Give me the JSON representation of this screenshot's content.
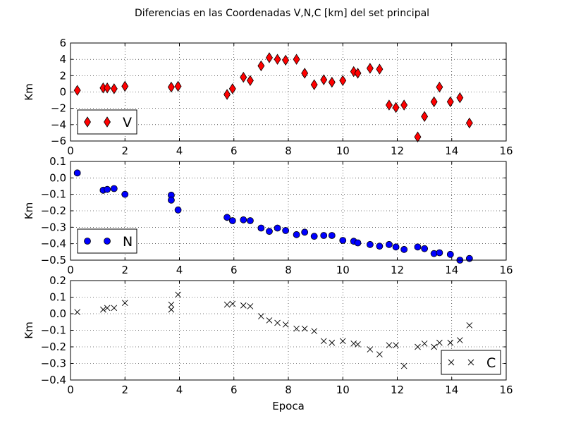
{
  "figure": {
    "title": "Diferencias en las Coordenadas V,N,C [km] del set principal"
  },
  "chart_data": [
    {
      "type": "scatter",
      "ylabel": "Km",
      "xlabel": "",
      "xlim": [
        0,
        16
      ],
      "ylim": [
        -6,
        6
      ],
      "xticks": [
        "0",
        "2",
        "4",
        "6",
        "8",
        "10",
        "12",
        "14",
        "16"
      ],
      "yticks": [
        "−6",
        "−4",
        "−2",
        "0",
        "2",
        "4",
        "6"
      ],
      "grid": true,
      "legend_placement": "lower-left",
      "marker": "diamond",
      "color": "#ff0000",
      "series": [
        {
          "name": "V",
          "x": [
            0.25,
            1.2,
            1.35,
            1.6,
            2.0,
            3.7,
            3.95,
            5.75,
            5.95,
            6.35,
            6.6,
            7.0,
            7.3,
            7.6,
            7.9,
            8.3,
            8.6,
            8.95,
            9.3,
            9.6,
            10.0,
            10.4,
            10.55,
            11.0,
            11.35,
            11.7,
            11.95,
            12.25,
            12.75,
            13.0,
            13.35,
            13.55,
            13.95,
            14.3,
            14.65
          ],
          "y": [
            0.2,
            0.5,
            0.5,
            0.4,
            0.7,
            0.6,
            0.7,
            -0.3,
            0.4,
            1.8,
            1.4,
            3.2,
            4.2,
            4.0,
            3.9,
            4.0,
            2.3,
            0.9,
            1.5,
            1.2,
            1.4,
            2.5,
            2.3,
            2.9,
            2.8,
            -1.6,
            -1.9,
            -1.6,
            -5.5,
            -3.0,
            -1.2,
            0.6,
            -1.2,
            -0.7,
            -3.8
          ]
        }
      ]
    },
    {
      "type": "scatter",
      "ylabel": "Km",
      "xlabel": "",
      "xlim": [
        0,
        16
      ],
      "ylim": [
        -0.5,
        0.1
      ],
      "xticks": [
        "0",
        "2",
        "4",
        "6",
        "8",
        "10",
        "12",
        "14",
        "16"
      ],
      "yticks": [
        "−0.5",
        "−0.4",
        "−0.3",
        "−0.2",
        "−0.1",
        "0.0",
        "0.1"
      ],
      "grid": true,
      "legend_placement": "lower-left",
      "marker": "circle",
      "color": "#0000ff",
      "series": [
        {
          "name": "N",
          "x": [
            0.25,
            1.2,
            1.35,
            1.6,
            2.0,
            3.7,
            3.7,
            3.95,
            5.75,
            5.95,
            6.35,
            6.6,
            7.0,
            7.3,
            7.6,
            7.9,
            8.3,
            8.6,
            8.95,
            9.3,
            9.6,
            10.0,
            10.4,
            10.55,
            11.0,
            11.35,
            11.7,
            11.95,
            12.25,
            12.75,
            13.0,
            13.35,
            13.55,
            13.95,
            14.3,
            14.65
          ],
          "y": [
            0.03,
            -0.075,
            -0.07,
            -0.065,
            -0.1,
            -0.105,
            -0.135,
            -0.195,
            -0.24,
            -0.26,
            -0.255,
            -0.26,
            -0.305,
            -0.325,
            -0.305,
            -0.32,
            -0.345,
            -0.33,
            -0.355,
            -0.35,
            -0.35,
            -0.38,
            -0.385,
            -0.395,
            -0.405,
            -0.415,
            -0.405,
            -0.42,
            -0.435,
            -0.42,
            -0.43,
            -0.46,
            -0.455,
            -0.465,
            -0.5,
            -0.49
          ]
        }
      ]
    },
    {
      "type": "scatter",
      "ylabel": "Km",
      "xlabel": "Epoca",
      "xlim": [
        0,
        16
      ],
      "ylim": [
        -0.4,
        0.2
      ],
      "xticks": [
        "0",
        "2",
        "4",
        "6",
        "8",
        "10",
        "12",
        "14",
        "16"
      ],
      "yticks": [
        "−0.4",
        "−0.3",
        "−0.2",
        "−0.1",
        "0.0",
        "0.1",
        "0.2"
      ],
      "grid": true,
      "legend_placement": "lower-right",
      "marker": "x",
      "color": "#000000",
      "series": [
        {
          "name": "C",
          "x": [
            0.25,
            1.2,
            1.35,
            1.6,
            2.0,
            3.7,
            3.7,
            3.95,
            5.75,
            5.95,
            6.35,
            6.6,
            7.0,
            7.3,
            7.6,
            7.9,
            8.3,
            8.6,
            8.95,
            9.3,
            9.6,
            10.0,
            10.4,
            10.55,
            11.0,
            11.35,
            11.7,
            11.95,
            12.25,
            12.75,
            13.0,
            13.35,
            13.55,
            13.95,
            14.3,
            14.65
          ],
          "y": [
            0.01,
            0.025,
            0.035,
            0.035,
            0.065,
            0.055,
            0.025,
            0.115,
            0.055,
            0.06,
            0.05,
            0.045,
            -0.015,
            -0.04,
            -0.055,
            -0.065,
            -0.09,
            -0.09,
            -0.105,
            -0.165,
            -0.175,
            -0.165,
            -0.18,
            -0.185,
            -0.215,
            -0.245,
            -0.19,
            -0.19,
            -0.315,
            -0.2,
            -0.18,
            -0.2,
            -0.175,
            -0.175,
            -0.16,
            -0.07
          ]
        }
      ]
    }
  ]
}
